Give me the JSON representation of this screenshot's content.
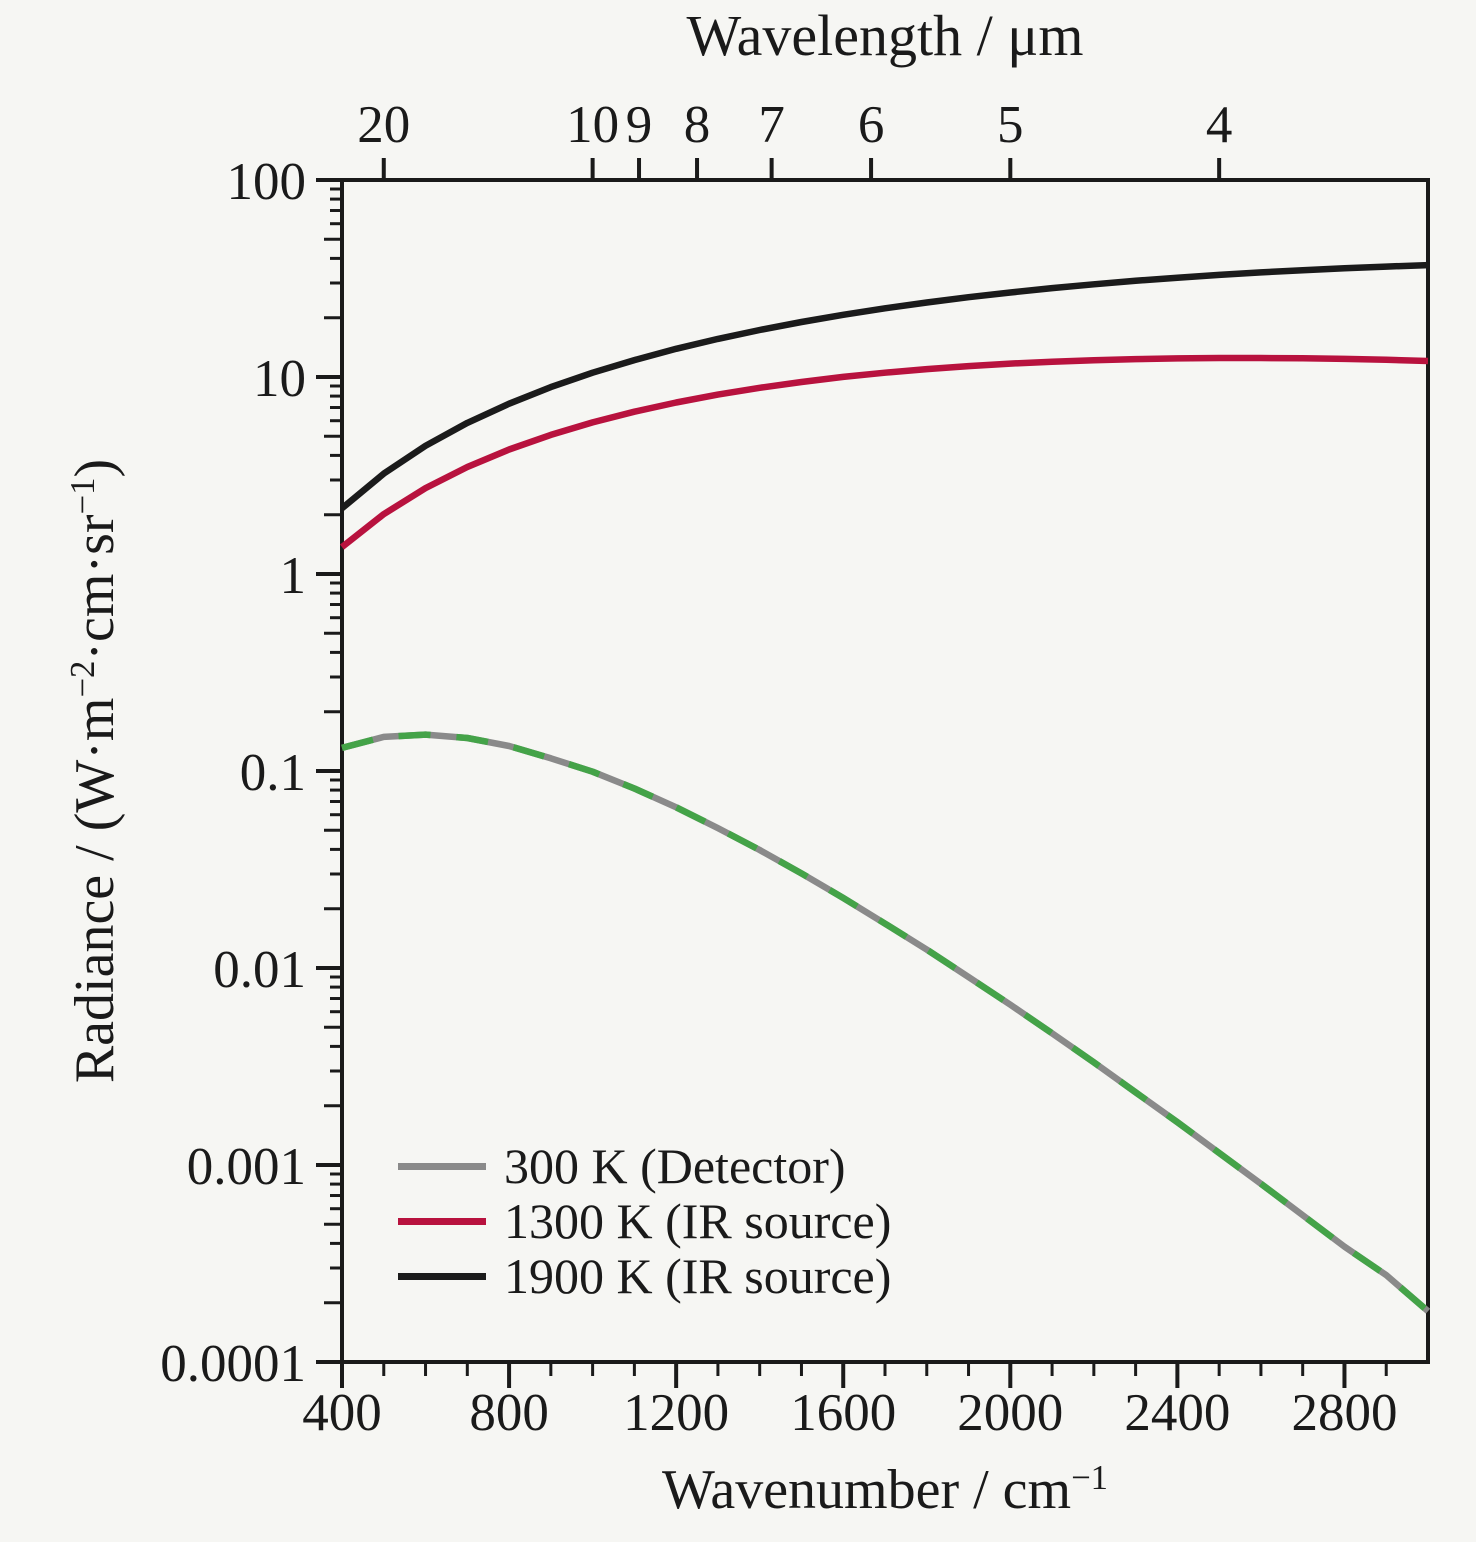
{
  "figure": {
    "background": "#f6f6f3",
    "text_color": "#1a1a1a",
    "frame_color": "#1a1a1a"
  },
  "chart_data": {
    "type": "line",
    "title": "",
    "x_axis": {
      "label": "Wavenumber / cm⁻¹",
      "label_parts": [
        {
          "text": "Wavenumber / cm"
        },
        {
          "sup": "−1"
        }
      ],
      "min": 400,
      "max": 3000,
      "major_ticks": [
        400,
        800,
        1200,
        1600,
        2000,
        2400,
        2800
      ],
      "minor_tick_step": 100
    },
    "top_axis": {
      "label": "Wavelength / μm",
      "relation": "wavelength_um = 10000 / wavenumber_cm-1",
      "ticks_um": [
        20,
        10,
        9,
        8,
        7,
        6,
        5,
        4
      ]
    },
    "y_axis": {
      "label": "Radiance / (W·m⁻²·cm·sr⁻¹)",
      "label_parts": [
        {
          "text": "Radiance / (W·m"
        },
        {
          "sup": "−2"
        },
        {
          "text": "·cm·sr"
        },
        {
          "sup": "−1"
        },
        {
          "text": ")"
        }
      ],
      "scale": "log",
      "min": 0.0001,
      "max": 100,
      "major_ticks": [
        100,
        10,
        1,
        0.1,
        0.01,
        0.001,
        0.0001
      ],
      "major_tick_labels": [
        "100",
        "10",
        "1",
        "0.1",
        "0.01",
        "0.001",
        "0.0001"
      ],
      "grid": false
    },
    "x_values": [
      400,
      500,
      600,
      700,
      800,
      900,
      1000,
      1100,
      1200,
      1300,
      1400,
      1500,
      1600,
      1700,
      1800,
      1900,
      2000,
      2100,
      2200,
      2300,
      2400,
      2500,
      2600,
      2700,
      2800,
      2900,
      3000
    ],
    "series": [
      {
        "name": "300 K (Detector)",
        "temperature_K": 300,
        "color": "#8a8a8a",
        "overlay_color": "#44a348",
        "overlay_style": "dashed",
        "values": [
          0.131,
          0.149,
          0.153,
          0.147,
          0.134,
          0.116,
          0.0992,
          0.0815,
          0.0654,
          0.0513,
          0.0397,
          0.0302,
          0.0227,
          0.0168,
          0.0124,
          0.009,
          0.00651,
          0.00466,
          0.00332,
          0.00234,
          0.00165,
          0.00115,
          0.000804,
          0.000556,
          0.000385,
          0.000276,
          0.000181
        ]
      },
      {
        "name": "1300 K (IR source)",
        "temperature_K": 1300,
        "color": "#b8123e",
        "values": [
          1.369,
          2.014,
          2.73,
          3.492,
          4.283,
          5.084,
          5.883,
          6.665,
          7.419,
          8.137,
          8.812,
          9.435,
          10.01,
          10.52,
          10.97,
          11.36,
          11.7,
          11.96,
          12.17,
          12.33,
          12.43,
          12.48,
          12.48,
          12.44,
          12.35,
          12.22,
          12.06
        ]
      },
      {
        "name": "1900 K (IR source)",
        "temperature_K": 1900,
        "color": "#1b1b1b",
        "values": [
          2.155,
          3.234,
          4.473,
          5.845,
          7.322,
          8.888,
          10.52,
          12.19,
          13.9,
          15.61,
          17.32,
          19.02,
          20.68,
          22.31,
          23.89,
          25.4,
          26.86,
          28.25,
          29.55,
          30.78,
          31.92,
          32.99,
          33.96,
          34.85,
          35.66,
          36.36,
          36.98
        ]
      }
    ],
    "legend": {
      "position": "inside-lower-left",
      "items": [
        "300 K (Detector)",
        "1300 K (IR source)",
        "1900 K (IR source)"
      ]
    }
  }
}
